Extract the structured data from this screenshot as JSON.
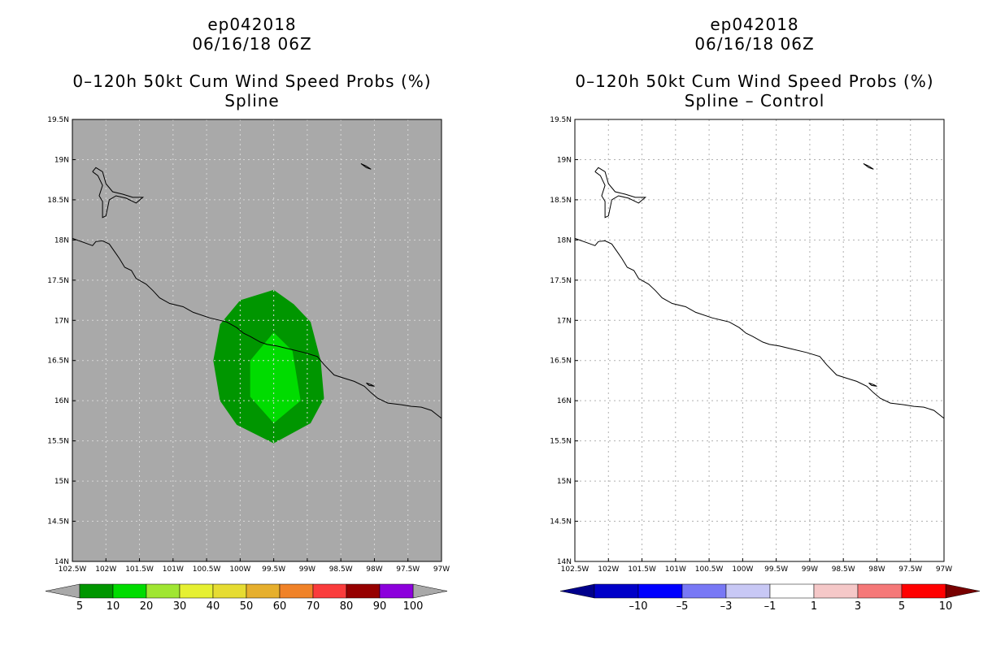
{
  "chart_data": [
    {
      "type": "heatmap",
      "title_lines": [
        "ep042018",
        "06/16/18 06Z",
        "0–120h 50kt Cum Wind Speed Probs (%)",
        "Spline"
      ],
      "xlim": [
        -102.5,
        -97
      ],
      "ylim": [
        14,
        19.5
      ],
      "grid": true,
      "x_tick_labels": [
        "102.5W",
        "102W",
        "101.5W",
        "101W",
        "100.5W",
        "100W",
        "99.5W",
        "99W",
        "98.5W",
        "98W",
        "97.5W",
        "97W"
      ],
      "y_tick_labels": [
        "14N",
        "14.5N",
        "15N",
        "15.5N",
        "16N",
        "16.5N",
        "17N",
        "17.5N",
        "18N",
        "18.5N",
        "19N",
        "19.5N"
      ],
      "background_color": "#a9a9a9",
      "contours": [
        {
          "level": "5-10",
          "color": "#009600",
          "polygon_lonlat": [
            [
              -99.5,
              17.38
            ],
            [
              -100.0,
              17.25
            ],
            [
              -100.3,
              16.95
            ],
            [
              -100.4,
              16.5
            ],
            [
              -100.3,
              16.0
            ],
            [
              -100.05,
              15.7
            ],
            [
              -99.5,
              15.47
            ],
            [
              -98.95,
              15.72
            ],
            [
              -98.75,
              16.03
            ],
            [
              -98.8,
              16.5
            ],
            [
              -98.95,
              16.98
            ],
            [
              -99.2,
              17.2
            ]
          ]
        },
        {
          "level": "10-20",
          "color": "#00dc00",
          "polygon_lonlat": [
            [
              -99.5,
              16.85
            ],
            [
              -99.85,
              16.5
            ],
            [
              -99.85,
              16.05
            ],
            [
              -99.5,
              15.72
            ],
            [
              -99.1,
              16.0
            ],
            [
              -99.22,
              16.62
            ]
          ]
        }
      ],
      "colorbar": {
        "labels": [
          "5",
          "10",
          "20",
          "30",
          "40",
          "50",
          "60",
          "70",
          "80",
          "90",
          "100"
        ],
        "colors": [
          "#009600",
          "#00dc00",
          "#a0e632",
          "#e6f032",
          "#e6dc32",
          "#e6af2d",
          "#f08228",
          "#fa3c3c",
          "#960000",
          "#8c00dc"
        ],
        "end_colors": [
          "#a9a9a9",
          "#a9a9a9"
        ]
      }
    },
    {
      "type": "heatmap",
      "title_lines": [
        "ep042018",
        "06/16/18 06Z",
        "0–120h 50kt Cum Wind Speed Probs (%)",
        "Spline – Control"
      ],
      "xlim": [
        -102.5,
        -97
      ],
      "ylim": [
        14,
        19.5
      ],
      "grid": true,
      "x_tick_labels": [
        "102.5W",
        "102W",
        "101.5W",
        "101W",
        "100.5W",
        "100W",
        "99.5W",
        "99W",
        "98.5W",
        "98W",
        "97.5W",
        "97W"
      ],
      "y_tick_labels": [
        "14N",
        "14.5N",
        "15N",
        "15.5N",
        "16N",
        "16.5N",
        "17N",
        "17.5N",
        "18N",
        "18.5N",
        "19N",
        "19.5N"
      ],
      "background_color": "#ffffff",
      "contours": [],
      "colorbar": {
        "labels": [
          "–10",
          "–5",
          "–3",
          "–1",
          "1",
          "3",
          "5",
          "10"
        ],
        "colors": [
          "#0000c8",
          "#0000ff",
          "#7878f5",
          "#c8c8f5",
          "#ffffff",
          "#f5c8c8",
          "#f57878",
          "#ff0000"
        ],
        "end_colors": [
          "#00008c",
          "#780000"
        ]
      }
    }
  ],
  "coastline_lonlat": [
    [
      -102.5,
      18.02
    ],
    [
      -102.3,
      17.96
    ],
    [
      -102.2,
      17.93
    ],
    [
      -102.15,
      17.98
    ],
    [
      -102.05,
      17.99
    ],
    [
      -101.95,
      17.95
    ],
    [
      -101.85,
      17.83
    ],
    [
      -101.8,
      17.77
    ],
    [
      -101.72,
      17.66
    ],
    [
      -101.62,
      17.62
    ],
    [
      -101.55,
      17.52
    ],
    [
      -101.4,
      17.45
    ],
    [
      -101.3,
      17.37
    ],
    [
      -101.2,
      17.28
    ],
    [
      -101.05,
      17.21
    ],
    [
      -100.85,
      17.17
    ],
    [
      -100.7,
      17.1
    ],
    [
      -100.45,
      17.03
    ],
    [
      -100.2,
      16.98
    ],
    [
      -100.05,
      16.91
    ],
    [
      -99.95,
      16.84
    ],
    [
      -99.85,
      16.8
    ],
    [
      -99.7,
      16.73
    ],
    [
      -99.6,
      16.7
    ],
    [
      -99.45,
      16.68
    ],
    [
      -99.3,
      16.65
    ],
    [
      -99.05,
      16.6
    ],
    [
      -98.85,
      16.55
    ],
    [
      -98.75,
      16.45
    ],
    [
      -98.6,
      16.32
    ],
    [
      -98.45,
      16.28
    ],
    [
      -98.3,
      16.24
    ],
    [
      -98.15,
      16.18
    ],
    [
      -98.05,
      16.1
    ],
    [
      -97.95,
      16.03
    ],
    [
      -97.8,
      15.97
    ],
    [
      -97.6,
      15.95
    ],
    [
      -97.45,
      15.93
    ],
    [
      -97.3,
      15.92
    ],
    [
      -97.15,
      15.88
    ],
    [
      -97.0,
      15.78
    ]
  ],
  "lake_lonlat": [
    [
      -102.2,
      18.85
    ],
    [
      -102.15,
      18.9
    ],
    [
      -102.05,
      18.85
    ],
    [
      -102.0,
      18.7
    ],
    [
      -101.9,
      18.6
    ],
    [
      -101.75,
      18.57
    ],
    [
      -101.6,
      18.53
    ],
    [
      -101.45,
      18.53
    ],
    [
      -101.55,
      18.46
    ],
    [
      -101.7,
      18.52
    ],
    [
      -101.85,
      18.55
    ],
    [
      -101.95,
      18.5
    ],
    [
      -102.0,
      18.3
    ],
    [
      -102.05,
      18.28
    ],
    [
      -102.05,
      18.48
    ],
    [
      -102.1,
      18.55
    ],
    [
      -102.05,
      18.68
    ],
    [
      -102.12,
      18.8
    ],
    [
      -102.2,
      18.85
    ]
  ],
  "island_lonlat": [
    [
      -98.2,
      18.95
    ],
    [
      -98.12,
      18.92
    ],
    [
      -98.05,
      18.88
    ],
    [
      -98.12,
      18.9
    ],
    [
      -98.2,
      18.95
    ]
  ],
  "island2_lonlat": [
    [
      -98.12,
      16.22
    ],
    [
      -98.05,
      16.2
    ],
    [
      -98.0,
      16.18
    ],
    [
      -98.08,
      16.19
    ],
    [
      -98.12,
      16.22
    ]
  ]
}
